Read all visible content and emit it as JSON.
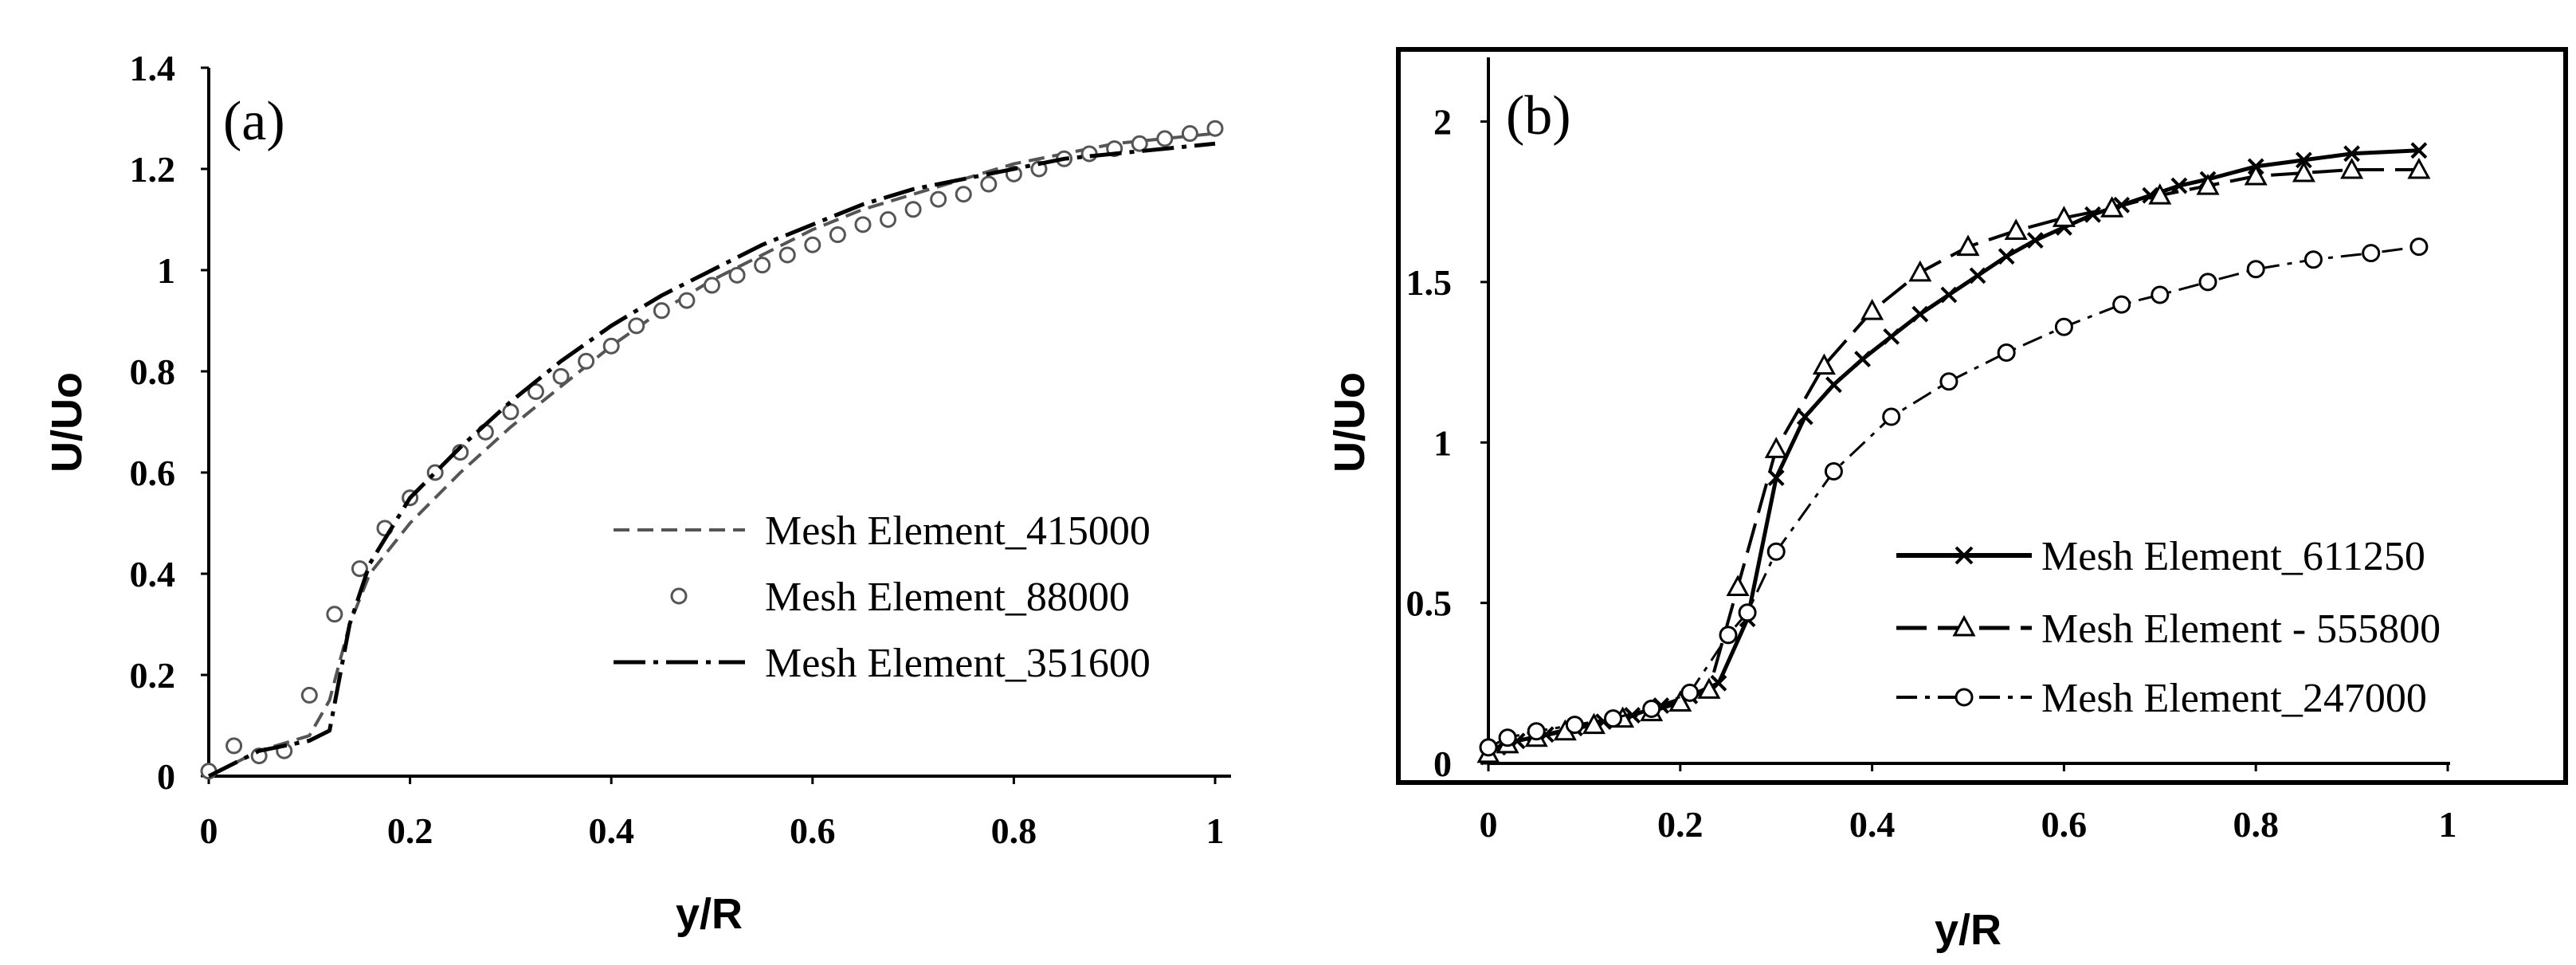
{
  "chart_data": [
    {
      "type": "line",
      "panel_label": "(a)",
      "xlabel": "y/R",
      "ylabel": "U/Uo",
      "xlim": [
        0,
        1
      ],
      "ylim": [
        0,
        1.4
      ],
      "x_ticks": [
        "0",
        "0.2",
        "0.4",
        "0.6",
        "0.8",
        "1"
      ],
      "y_ticks": [
        "0",
        "0.2",
        "0.4",
        "0.6",
        "0.8",
        "1",
        "1.2",
        "1.4"
      ],
      "legend_position": "lower-right",
      "series": [
        {
          "name": "Mesh Element_415000",
          "style": "dashed",
          "x": [
            0,
            0.05,
            0.1,
            0.12,
            0.14,
            0.16,
            0.2,
            0.25,
            0.3,
            0.35,
            0.4,
            0.45,
            0.5,
            0.55,
            0.6,
            0.65,
            0.7,
            0.75,
            0.8,
            0.85,
            0.9,
            0.95,
            1.0
          ],
          "y": [
            0,
            0.05,
            0.08,
            0.15,
            0.3,
            0.4,
            0.5,
            0.6,
            0.69,
            0.77,
            0.85,
            0.92,
            0.98,
            1.03,
            1.08,
            1.12,
            1.15,
            1.18,
            1.21,
            1.23,
            1.25,
            1.26,
            1.27
          ]
        },
        {
          "name": "Mesh Element_88000",
          "style": "markers-circle",
          "x": [
            0,
            0.025,
            0.05,
            0.075,
            0.1,
            0.125,
            0.15,
            0.175,
            0.2,
            0.225,
            0.25,
            0.275,
            0.3,
            0.325,
            0.35,
            0.375,
            0.4,
            0.425,
            0.45,
            0.475,
            0.5,
            0.525,
            0.55,
            0.575,
            0.6,
            0.625,
            0.65,
            0.675,
            0.7,
            0.725,
            0.75,
            0.775,
            0.8,
            0.825,
            0.85,
            0.875,
            0.9,
            0.925,
            0.95,
            0.975,
            1.0
          ],
          "y": [
            0.01,
            0.06,
            0.04,
            0.05,
            0.16,
            0.32,
            0.41,
            0.49,
            0.55,
            0.6,
            0.64,
            0.68,
            0.72,
            0.76,
            0.79,
            0.82,
            0.85,
            0.89,
            0.92,
            0.94,
            0.97,
            0.99,
            1.01,
            1.03,
            1.05,
            1.07,
            1.09,
            1.1,
            1.12,
            1.14,
            1.15,
            1.17,
            1.19,
            1.2,
            1.22,
            1.23,
            1.24,
            1.25,
            1.26,
            1.27,
            1.28
          ]
        },
        {
          "name": "Mesh Element_351600",
          "style": "dash-dot",
          "x": [
            0,
            0.05,
            0.1,
            0.12,
            0.14,
            0.16,
            0.2,
            0.25,
            0.3,
            0.35,
            0.4,
            0.45,
            0.5,
            0.55,
            0.6,
            0.65,
            0.7,
            0.75,
            0.8,
            0.85,
            0.9,
            0.95,
            1.0
          ],
          "y": [
            0,
            0.05,
            0.07,
            0.09,
            0.3,
            0.42,
            0.55,
            0.65,
            0.74,
            0.82,
            0.89,
            0.95,
            1.0,
            1.05,
            1.09,
            1.13,
            1.16,
            1.18,
            1.2,
            1.22,
            1.23,
            1.24,
            1.25
          ]
        }
      ]
    },
    {
      "type": "line",
      "panel_label": "(b)",
      "xlabel": "y/R",
      "ylabel": "U/Uo",
      "xlim": [
        0,
        1
      ],
      "ylim": [
        0,
        2.2
      ],
      "x_ticks": [
        "0",
        "0.2",
        "0.4",
        "0.6",
        "0.8",
        "1"
      ],
      "y_ticks": [
        "0",
        "0.5",
        "1",
        "1.5",
        "2"
      ],
      "legend_position": "lower-right",
      "series": [
        {
          "name": "Mesh Element_611250",
          "style": "solid-x-markers",
          "x": [
            0,
            0.01,
            0.03,
            0.06,
            0.09,
            0.12,
            0.15,
            0.18,
            0.21,
            0.24,
            0.27,
            0.3,
            0.33,
            0.36,
            0.39,
            0.42,
            0.45,
            0.48,
            0.51,
            0.54,
            0.57,
            0.6,
            0.63,
            0.66,
            0.69,
            0.72,
            0.75,
            0.8,
            0.85,
            0.9,
            0.97
          ],
          "y": [
            0.02,
            0.05,
            0.07,
            0.09,
            0.11,
            0.13,
            0.15,
            0.18,
            0.21,
            0.25,
            0.45,
            0.89,
            1.08,
            1.18,
            1.26,
            1.33,
            1.4,
            1.46,
            1.52,
            1.58,
            1.63,
            1.67,
            1.71,
            1.74,
            1.77,
            1.8,
            1.82,
            1.86,
            1.88,
            1.9,
            1.91
          ]
        },
        {
          "name": "Mesh Element - 555800",
          "style": "longdash-triangle-markers",
          "x": [
            0,
            0.02,
            0.05,
            0.08,
            0.11,
            0.14,
            0.17,
            0.2,
            0.23,
            0.26,
            0.3,
            0.35,
            0.4,
            0.45,
            0.5,
            0.55,
            0.6,
            0.65,
            0.7,
            0.75,
            0.8,
            0.85,
            0.9,
            0.97
          ],
          "y": [
            0.03,
            0.06,
            0.08,
            0.1,
            0.12,
            0.14,
            0.16,
            0.19,
            0.23,
            0.55,
            0.98,
            1.24,
            1.41,
            1.53,
            1.61,
            1.66,
            1.7,
            1.73,
            1.77,
            1.8,
            1.83,
            1.84,
            1.85,
            1.85
          ]
        },
        {
          "name": "Mesh Element_247000",
          "style": "dashdot-circle-markers",
          "x": [
            0,
            0.02,
            0.05,
            0.09,
            0.13,
            0.17,
            0.21,
            0.25,
            0.27,
            0.3,
            0.36,
            0.42,
            0.48,
            0.54,
            0.6,
            0.66,
            0.7,
            0.75,
            0.8,
            0.86,
            0.92,
            0.97
          ],
          "y": [
            0.05,
            0.08,
            0.1,
            0.12,
            0.14,
            0.17,
            0.22,
            0.4,
            0.47,
            0.66,
            0.91,
            1.08,
            1.19,
            1.28,
            1.36,
            1.43,
            1.46,
            1.5,
            1.54,
            1.57,
            1.59,
            1.61
          ]
        }
      ]
    }
  ]
}
